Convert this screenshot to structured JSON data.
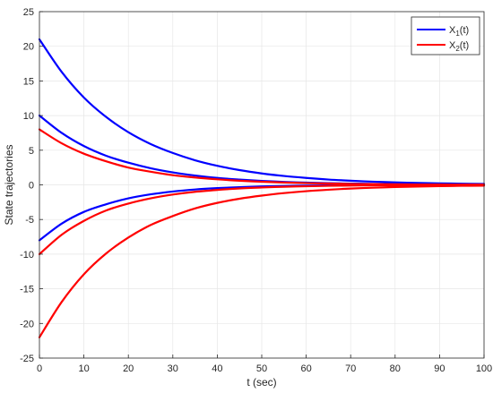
{
  "chart_data": {
    "type": "line",
    "title": "",
    "xlabel": "t (sec)",
    "ylabel": "State trajectories",
    "xlim": [
      0,
      100
    ],
    "ylim": [
      -25,
      25
    ],
    "x_ticks": [
      0,
      10,
      20,
      30,
      40,
      50,
      60,
      70,
      80,
      90,
      100
    ],
    "y_ticks": [
      -25,
      -20,
      -15,
      -10,
      -5,
      0,
      5,
      10,
      15,
      20,
      25
    ],
    "grid": true,
    "legend_position": "top-right",
    "legend": [
      {
        "main": "X",
        "sub": "1",
        "suffix": "(t)",
        "color": "#0000ff"
      },
      {
        "main": "X",
        "sub": "2",
        "suffix": "(t)",
        "color": "#ff0000"
      }
    ],
    "x": [
      0,
      5,
      10,
      15,
      20,
      25,
      30,
      35,
      40,
      45,
      50,
      55,
      60,
      65,
      70,
      75,
      80,
      85,
      90,
      95,
      100
    ],
    "series": [
      {
        "legend_index": 0,
        "color": "#0000ff",
        "values": [
          21,
          16.3,
          12.6,
          9.8,
          7.6,
          5.9,
          4.6,
          3.55,
          2.75,
          2.13,
          1.65,
          1.28,
          1.0,
          0.77,
          0.6,
          0.46,
          0.36,
          0.28,
          0.22,
          0.17,
          0.13
        ]
      },
      {
        "legend_index": 0,
        "color": "#0000ff",
        "values": [
          10,
          7.5,
          5.6,
          4.2,
          3.2,
          2.4,
          1.8,
          1.35,
          1.0,
          0.76,
          0.57,
          0.43,
          0.32,
          0.24,
          0.18,
          0.14,
          0.1,
          0.08,
          0.06,
          0.04,
          0.03
        ]
      },
      {
        "legend_index": 0,
        "color": "#0000ff",
        "values": [
          -8,
          -5.6,
          -3.9,
          -2.8,
          -1.95,
          -1.37,
          -0.96,
          -0.67,
          -0.47,
          -0.33,
          -0.23,
          -0.16,
          -0.11,
          -0.08,
          -0.06,
          -0.04,
          -0.03,
          -0.02,
          -0.01,
          -0.01,
          0
        ]
      },
      {
        "legend_index": 1,
        "color": "#ff0000",
        "values": [
          8,
          6.0,
          4.5,
          3.4,
          2.5,
          1.9,
          1.4,
          1.07,
          0.8,
          0.6,
          0.45,
          0.34,
          0.25,
          0.19,
          0.14,
          0.11,
          0.08,
          0.06,
          0.05,
          0.03,
          0.03
        ]
      },
      {
        "legend_index": 1,
        "color": "#ff0000",
        "values": [
          -10,
          -7.2,
          -5.2,
          -3.7,
          -2.7,
          -1.95,
          -1.4,
          -1.0,
          -0.73,
          -0.52,
          -0.38,
          -0.27,
          -0.2,
          -0.14,
          -0.1,
          -0.07,
          -0.05,
          -0.04,
          -0.03,
          -0.02,
          -0.01
        ]
      },
      {
        "legend_index": 1,
        "color": "#ff0000",
        "values": [
          -22,
          -16.9,
          -12.9,
          -9.9,
          -7.6,
          -5.8,
          -4.5,
          -3.4,
          -2.6,
          -2.0,
          -1.55,
          -1.19,
          -0.91,
          -0.7,
          -0.53,
          -0.41,
          -0.31,
          -0.24,
          -0.18,
          -0.14,
          -0.11
        ]
      }
    ]
  }
}
